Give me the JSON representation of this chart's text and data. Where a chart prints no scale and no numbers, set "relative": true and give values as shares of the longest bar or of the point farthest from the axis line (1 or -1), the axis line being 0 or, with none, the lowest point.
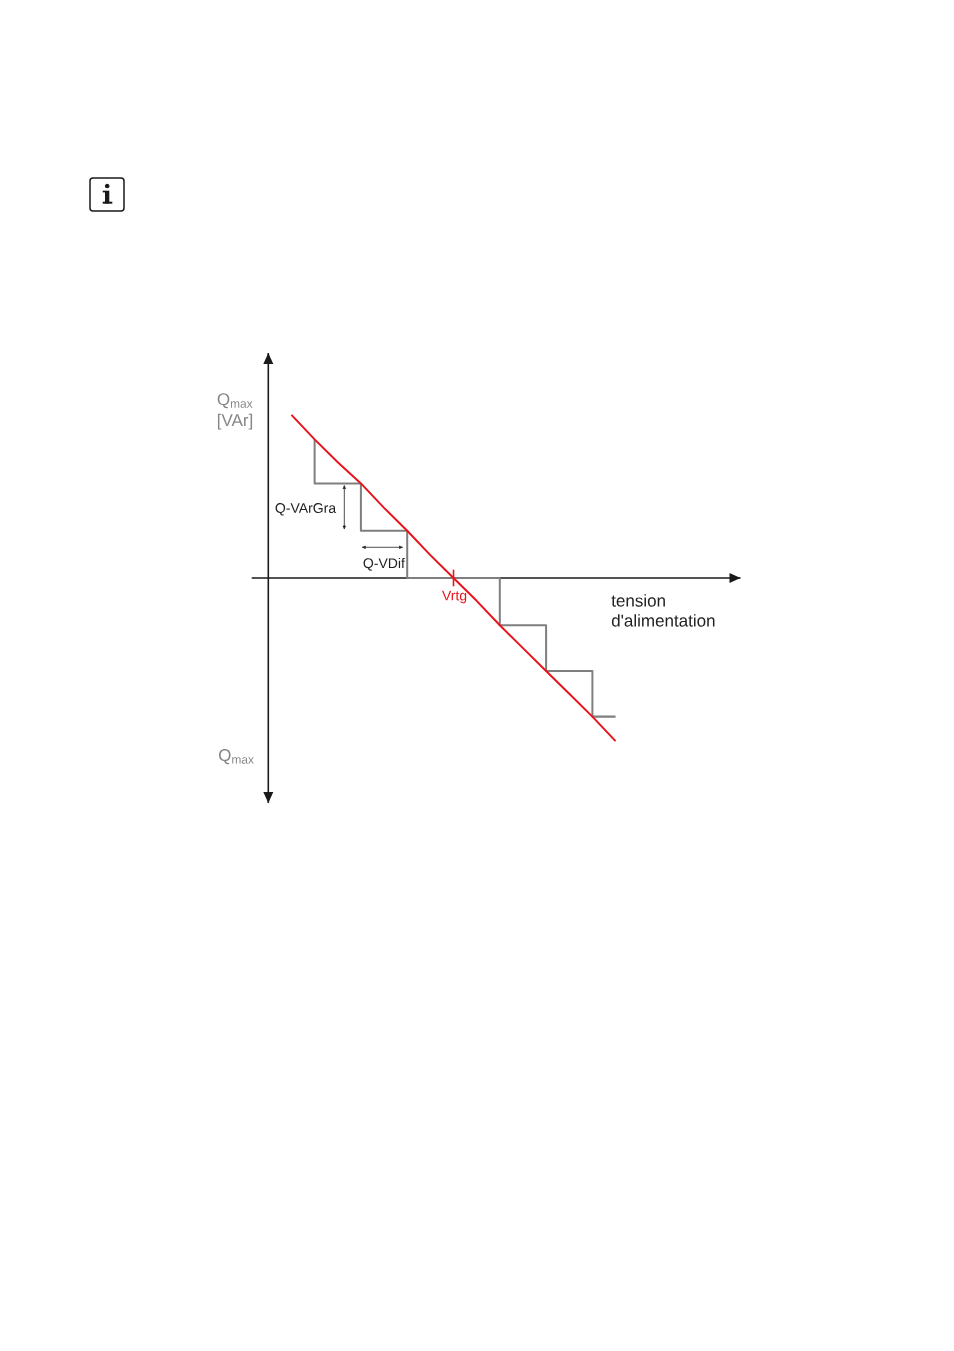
{
  "chart_data": {
    "type": "line",
    "relative": true,
    "tick_labels": false,
    "marker": "none",
    "ylabel": "Q$_{max}$ [VAr]",
    "xlabel": "tension d'alimentation",
    "categories": [
      null,
      null,
      null,
      null,
      null,
      null,
      null,
      null,
      null,
      null,
      null,
      null,
      null,
      null,
      null,
      null,
      null,
      null,
      null,
      null,
      null
    ],
    "series": [
      {
        "type": "step",
        "color": "#7f7f7f",
        "values": [
          null,
          null,
          0.85,
          0.58,
          0.58,
          0.29,
          0.29,
          0,
          0,
          0,
          0,
          -0.29,
          -0.29,
          -0.57,
          -0.57,
          -0.85,
          null,
          null,
          null,
          null,
          null
        ]
      },
      {
        "color": "#e8141c",
        "values": [
          null,
          1,
          0.85,
          0.71,
          0.58,
          0.43,
          0.29,
          0.14,
          0,
          -0.14,
          -0.29,
          -0.43,
          -0.57,
          -0.71,
          -0.85,
          -1,
          null,
          null,
          null,
          null,
          null
        ]
      }
    ],
    "annotations": [
      "Q-VArGra",
      "Q-VDif",
      {
        "text": "Vrtg",
        "y": 0
      },
      "Q$_{max}$"
    ]
  }
}
